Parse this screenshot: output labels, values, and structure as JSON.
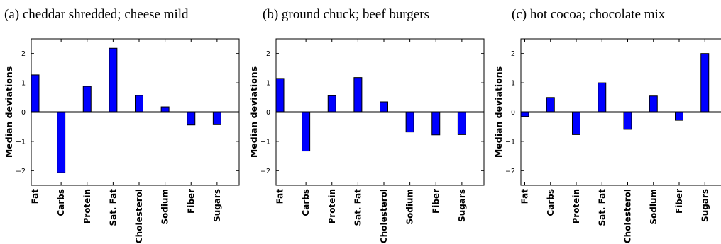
{
  "chart_data": [
    {
      "type": "bar",
      "title": "(a) cheddar shredded; cheese mild",
      "ylabel": "Median deviations",
      "xlabel": "",
      "categories": [
        "Fat",
        "Carbs",
        "Protein",
        "Sat. Fat",
        "Cholesterol",
        "Sodium",
        "Fiber",
        "Sugars"
      ],
      "values": [
        1.27,
        -2.07,
        0.88,
        2.18,
        0.57,
        0.18,
        -0.44,
        -0.43
      ],
      "ylim": [
        -2.5,
        2.5
      ],
      "yticks": [
        -2,
        -1,
        0,
        1,
        2
      ],
      "ytick_labels": [
        "−2",
        "−1",
        "0",
        "1",
        "2"
      ],
      "bar_color": "#0000ff",
      "grid": false
    },
    {
      "type": "bar",
      "title": "(b) ground chuck; beef burgers",
      "ylabel": "Median deviations",
      "xlabel": "",
      "categories": [
        "Fat",
        "Carbs",
        "Protein",
        "Sat. Fat",
        "Cholesterol",
        "Sodium",
        "Fiber",
        "Sugars"
      ],
      "values": [
        1.15,
        -1.33,
        0.56,
        1.18,
        0.35,
        -0.68,
        -0.78,
        -0.77
      ],
      "ylim": [
        -2.5,
        2.5
      ],
      "yticks": [
        -2,
        -1,
        0,
        1,
        2
      ],
      "ytick_labels": [
        "−2",
        "−1",
        "0",
        "1",
        "2"
      ],
      "bar_color": "#0000ff",
      "grid": false
    },
    {
      "type": "bar",
      "title": "(c) hot cocoa; chocolate mix",
      "ylabel": "Median deviations",
      "xlabel": "",
      "categories": [
        "Fat",
        "Carbs",
        "Protein",
        "Sat. Fat",
        "Cholesterol",
        "Sodium",
        "Fiber",
        "Sugars"
      ],
      "values": [
        -0.15,
        0.5,
        -0.77,
        1.0,
        -0.59,
        0.55,
        -0.28,
        2.0
      ],
      "ylim": [
        -2.5,
        2.5
      ],
      "yticks": [
        -2,
        -1,
        0,
        1,
        2
      ],
      "ytick_labels": [
        "−2",
        "−1",
        "0",
        "1",
        "2"
      ],
      "bar_color": "#0000ff",
      "grid": false
    }
  ]
}
